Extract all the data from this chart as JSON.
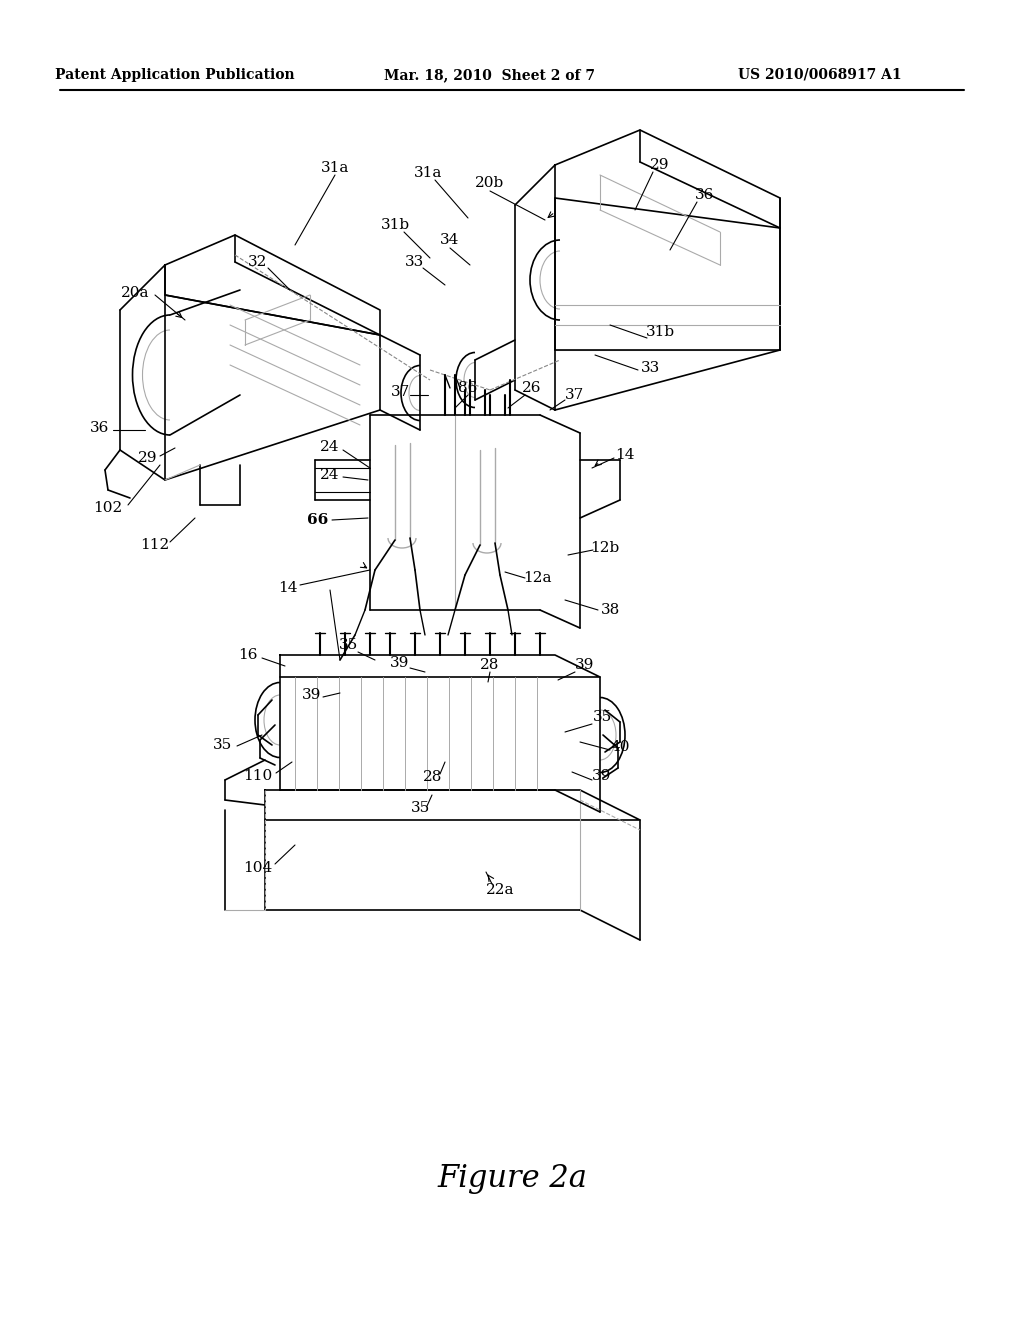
{
  "background_color": "#ffffff",
  "text_color": "#000000",
  "line_color": "#000000",
  "figure_caption": "Figure 2a",
  "header_left": "Patent Application Publication",
  "header_center": "Mar. 18, 2010  Sheet 2 of 7",
  "header_right": "US 2010/0068917 A1",
  "gray_line": "#888888",
  "light_gray": "#aaaaaa",
  "annotation_fontsize": 11,
  "caption_fontsize": 22,
  "header_fontsize": 10
}
